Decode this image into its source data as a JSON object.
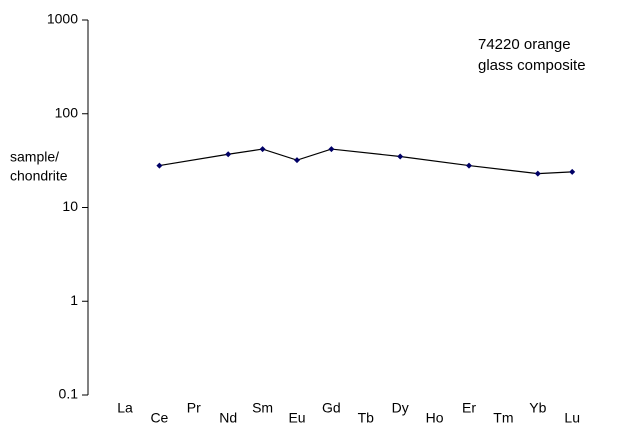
{
  "chart_data": {
    "type": "line",
    "annotation": [
      "74220 orange",
      "glass composite"
    ],
    "ylabel": [
      "sample/",
      "chondrite"
    ],
    "categories": [
      "La",
      "Ce",
      "Pr",
      "Nd",
      "Sm",
      "Eu",
      "Gd",
      "Tb",
      "Dy",
      "Ho",
      "Er",
      "Tm",
      "Yb",
      "Lu"
    ],
    "series": [
      {
        "name": "74220",
        "color": "#000066",
        "line_color": "#000000",
        "values": [
          null,
          28,
          null,
          37,
          42,
          32,
          42,
          null,
          35,
          null,
          28,
          null,
          23,
          24
        ]
      }
    ],
    "connect_gaps": true,
    "log_scale": true,
    "ylim": [
      0.1,
      1000
    ],
    "yticks": [
      0.1,
      1,
      10,
      100,
      1000
    ]
  }
}
